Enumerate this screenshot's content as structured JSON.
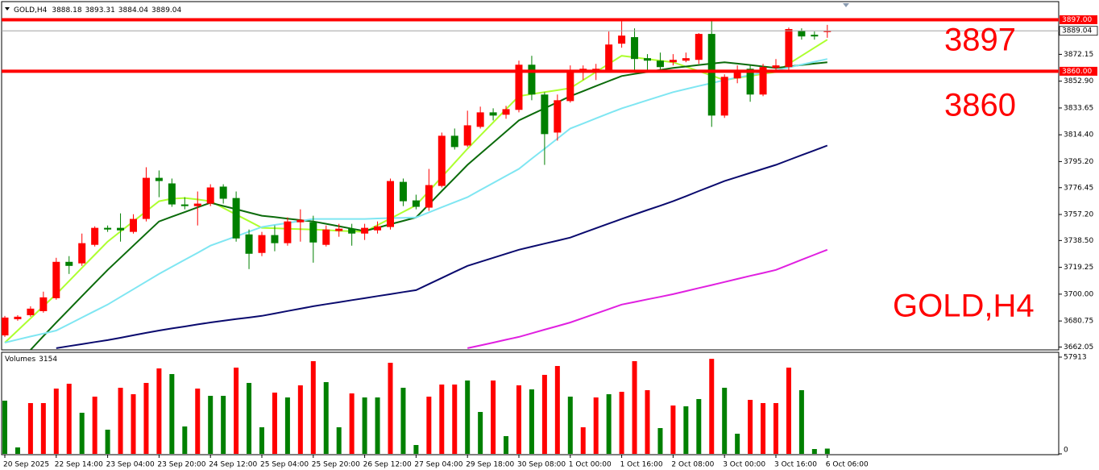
{
  "chart_data": {
    "type": "candlestick",
    "title": "GOLD,H4",
    "categories": [
      "20 Sep 2025",
      null,
      null,
      null,
      "22 Sep 14:00",
      null,
      null,
      null,
      "23 Sep 04:00",
      null,
      null,
      null,
      "23 Sep 20:00",
      null,
      null,
      null,
      "24 Sep 12:00",
      null,
      null,
      null,
      "25 Sep 04:00",
      null,
      null,
      null,
      "25 Sep 20:00",
      null,
      null,
      null,
      "26 Sep 12:00",
      null,
      null,
      null,
      "27 Sep 04:00",
      null,
      null,
      null,
      "29 Sep 18:00",
      null,
      null,
      null,
      "30 Sep 08:00",
      null,
      null,
      null,
      "1 Oct 00:00",
      null,
      null,
      null,
      "1 Oct 16:00",
      null,
      null,
      null,
      "2 Oct 08:00",
      null,
      null,
      null,
      "3 Oct 00:00",
      null,
      null,
      null,
      "3 Oct 16:00",
      null,
      null,
      null,
      "6 Oct 06:00"
    ],
    "open": [
      3670.4,
      3682.0,
      3684.9,
      3687.8,
      3697.1,
      3723.2,
      3722.1,
      3735.4,
      3747.6,
      3747.6,
      3744.7,
      3754.0,
      3783.5,
      3779.5,
      3764.4,
      3763.2,
      3765.0,
      3777.2,
      3769.0,
      3742.9,
      3729.6,
      3742.4,
      3736.6,
      3751.6,
      3751.6,
      3735.4,
      3745.3,
      3747.0,
      3743.5,
      3745.8,
      3748.2,
      3780.6,
      3767.3,
      3762.1,
      3777.7,
      3813.7,
      3806.7,
      3820.1,
      3830.5,
      3828.8,
      3832.3,
      3864.7,
      3843.3,
      3816.0,
      3838.6,
      3859.5,
      3860.1,
      3860.7,
      3879.8,
      3884.5,
      3869.4,
      3867.6,
      3866.5,
      3867.6,
      3868.2,
      3886.8,
      3828.2,
      3854.9,
      3861.8,
      3843.3,
      3862.4,
      3863.0,
      3889.1,
      3886.2,
      3888.18
    ],
    "high": [
      3684.4,
      3684.9,
      3691.3,
      3701.8,
      3726.1,
      3727.3,
      3743.5,
      3748.7,
      3749.3,
      3758.0,
      3757.4,
      3791.1,
      3788.8,
      3783.0,
      3769.6,
      3773.7,
      3778.9,
      3778.9,
      3773.7,
      3746.4,
      3744.7,
      3749.3,
      3755.1,
      3760.9,
      3756.3,
      3749.3,
      3750.5,
      3750.5,
      3750.5,
      3752.2,
      3783.0,
      3783.0,
      3771.4,
      3789.9,
      3816.0,
      3818.9,
      3831.7,
      3834.6,
      3833.4,
      3835.2,
      3867.6,
      3871.1,
      3845.0,
      3843.3,
      3864.2,
      3864.2,
      3865.3,
      3888.5,
      3896.1,
      3890.8,
      3872.3,
      3873.4,
      3872.3,
      3873.4,
      3887.4,
      3896.1,
      3857.8,
      3864.2,
      3864.2,
      3865.3,
      3868.8,
      3891.4,
      3890.8,
      3888.5,
      3893.31
    ],
    "low": [
      3669.3,
      3680.9,
      3683.8,
      3686.7,
      3696.0,
      3714.5,
      3720.3,
      3734.2,
      3744.7,
      3737.7,
      3743.5,
      3752.2,
      3769.6,
      3762.7,
      3760.9,
      3749.3,
      3763.2,
      3765.0,
      3737.7,
      3718.0,
      3727.3,
      3730.8,
      3734.8,
      3737.7,
      3722.6,
      3734.2,
      3741.2,
      3734.8,
      3738.9,
      3743.5,
      3746.4,
      3763.2,
      3760.9,
      3759.8,
      3776.6,
      3803.8,
      3805.6,
      3818.9,
      3824.7,
      3825.9,
      3830.5,
      3839.2,
      3792.8,
      3810.2,
      3837.5,
      3853.7,
      3853.7,
      3859.5,
      3876.9,
      3859.5,
      3859.5,
      3859.5,
      3864.2,
      3866.5,
      3865.3,
      3820.1,
      3826.5,
      3851.4,
      3838.1,
      3842.1,
      3860.7,
      3860.7,
      3882.7,
      3882.7,
      3884.04
    ],
    "close": [
      3683.2,
      3683.8,
      3689.6,
      3697.7,
      3723.2,
      3720.3,
      3736.6,
      3747.6,
      3746.4,
      3745.8,
      3754.0,
      3783.5,
      3781.2,
      3764.4,
      3763.2,
      3765.0,
      3776.6,
      3768.5,
      3740.0,
      3729.0,
      3742.4,
      3736.6,
      3752.2,
      3753.4,
      3737.1,
      3746.4,
      3747.0,
      3743.5,
      3747.6,
      3748.7,
      3781.2,
      3766.7,
      3762.7,
      3778.3,
      3813.7,
      3805.6,
      3821.2,
      3830.5,
      3828.2,
      3832.8,
      3864.7,
      3843.3,
      3814.9,
      3839.2,
      3860.1,
      3861.8,
      3861.8,
      3879.2,
      3885.6,
      3868.8,
      3867.6,
      3863.0,
      3868.2,
      3869.4,
      3886.8,
      3828.2,
      3856.0,
      3860.7,
      3843.3,
      3863.0,
      3864.2,
      3890.3,
      3885.0,
      3885.0,
      3889.04
    ],
    "up_color": "#ff0000",
    "down_color": "#008000",
    "ylim": [
      3660,
      3910
    ],
    "yticks": [
      {
        "value": 3872.15,
        "label": "3872.15"
      },
      {
        "value": 3852.9,
        "label": "3852.90"
      },
      {
        "value": 3833.65,
        "label": "3833.65"
      },
      {
        "value": 3814.4,
        "label": "3814.40"
      },
      {
        "value": 3795.2,
        "label": "3795.20"
      },
      {
        "value": 3776.45,
        "label": "3776.45"
      },
      {
        "value": 3757.2,
        "label": "3757.20"
      },
      {
        "value": 3738.5,
        "label": "3738.50"
      },
      {
        "value": 3719.25,
        "label": "3719.25"
      },
      {
        "value": 3700,
        "label": "3700.00"
      },
      {
        "value": 3680.75,
        "label": "3680.75"
      },
      {
        "value": 3662.05,
        "label": "3662.05"
      }
    ],
    "levels": [
      {
        "value": 3897,
        "label": "3897.00",
        "color": "#ff0000"
      },
      {
        "value": 3860,
        "label": "3860.00",
        "color": "#ff0000"
      }
    ],
    "moving_averages": [
      {
        "color": "#adff2f",
        "values": [
          3665.2,
          3673.9,
          3682.6,
          3691.3,
          3700.0,
          3709.4,
          3718.9,
          3728.3,
          3737.7,
          3745.0,
          3752.2,
          3759.5,
          3766.7,
          3768.5,
          3769.0,
          3768.0,
          3766.7,
          3761.9,
          3757.1,
          3752.4,
          3747.6,
          3747.3,
          3747.0,
          3746.7,
          3746.4,
          3746.0,
          3745.5,
          3745.1,
          3744.7,
          3749.5,
          3754.2,
          3759.0,
          3763.8,
          3774.0,
          3784.1,
          3794.3,
          3804.4,
          3813.8,
          3823.3,
          3832.7,
          3842.1,
          3843.6,
          3845.0,
          3846.4,
          3847.9,
          3853.7,
          3859.5,
          3865.3,
          3871.1,
          3870.0,
          3868.8,
          3867.6,
          3866.5,
          3863.3,
          3860.1,
          3856.9,
          3853.7,
          3855.2,
          3856.6,
          3858.1,
          3859.5,
          3865.3,
          3871.1,
          3876.9,
          3882.7
        ]
      },
      {
        "color": "#0b6b0b",
        "values": [
          null,
          null,
          3660.0,
          3669.9,
          3679.7,
          3689.1,
          3698.6,
          3708.0,
          3717.4,
          3726.1,
          3734.8,
          3743.5,
          3752.2,
          3755.6,
          3758.9,
          3762.3,
          3765.6,
          3763.3,
          3761.0,
          3758.6,
          3756.3,
          3755.3,
          3754.2,
          3753.2,
          3752.2,
          3750.5,
          3748.8,
          3747.0,
          3745.3,
          3747.7,
          3750.2,
          3752.6,
          3755.1,
          3764.5,
          3774.0,
          3783.4,
          3792.8,
          3800.8,
          3808.7,
          3816.7,
          3824.7,
          3829.1,
          3833.4,
          3837.8,
          3842.1,
          3845.7,
          3849.4,
          3853.0,
          3856.6,
          3858.1,
          3859.5,
          3861.0,
          3862.4,
          3863.4,
          3864.5,
          3865.5,
          3866.5,
          3865.5,
          3864.5,
          3863.4,
          3862.4,
          3863.4,
          3864.5,
          3865.5,
          3866.5
        ]
      },
      {
        "color": "#7fe6f2",
        "values": [
          3665.2,
          3667.4,
          3669.6,
          3671.7,
          3673.9,
          3678.5,
          3683.2,
          3687.9,
          3692.5,
          3698.0,
          3703.5,
          3709.0,
          3714.5,
          3719.6,
          3724.7,
          3729.7,
          3734.8,
          3738.2,
          3741.5,
          3744.9,
          3748.2,
          3749.7,
          3751.1,
          3752.6,
          3754.0,
          3754.0,
          3754.0,
          3754.0,
          3754.0,
          3754.3,
          3754.6,
          3754.8,
          3755.1,
          3758.7,
          3762.4,
          3766.0,
          3769.6,
          3774.7,
          3779.8,
          3784.8,
          3789.9,
          3797.2,
          3804.4,
          3811.7,
          3818.9,
          3822.5,
          3826.2,
          3829.8,
          3833.4,
          3836.3,
          3839.2,
          3842.1,
          3845.0,
          3847.2,
          3849.4,
          3851.5,
          3853.7,
          3855.5,
          3857.2,
          3859.0,
          3860.7,
          3862.7,
          3864.8,
          3866.8,
          3868.8
        ]
      },
      {
        "color": "#0a0a6e",
        "values": [
          null,
          null,
          null,
          null,
          3661.2,
          3662.7,
          3664.1,
          3665.6,
          3667.0,
          3668.7,
          3670.5,
          3672.2,
          3673.9,
          3675.4,
          3676.8,
          3678.3,
          3679.7,
          3680.9,
          3682.1,
          3683.2,
          3684.4,
          3686.1,
          3687.9,
          3689.6,
          3691.3,
          3692.8,
          3694.2,
          3695.7,
          3697.1,
          3698.6,
          3700.0,
          3701.5,
          3702.9,
          3707.3,
          3711.6,
          3716.0,
          3720.3,
          3723.2,
          3726.1,
          3729.0,
          3731.9,
          3734.1,
          3736.3,
          3738.4,
          3740.6,
          3744.0,
          3747.3,
          3750.7,
          3754.0,
          3757.2,
          3760.4,
          3763.5,
          3766.7,
          3770.3,
          3774.0,
          3777.6,
          3781.2,
          3784.1,
          3787.0,
          3789.9,
          3792.8,
          3796.3,
          3799.8,
          3803.2,
          3806.7
        ]
      },
      {
        "color": "#e020e0",
        "values": [
          null,
          null,
          null,
          null,
          null,
          null,
          null,
          null,
          null,
          null,
          null,
          null,
          null,
          null,
          null,
          null,
          null,
          null,
          null,
          null,
          null,
          null,
          null,
          null,
          null,
          null,
          null,
          null,
          null,
          null,
          null,
          null,
          null,
          null,
          null,
          null,
          3661.2,
          3663.2,
          3665.2,
          3667.3,
          3669.3,
          3671.9,
          3674.5,
          3677.1,
          3679.7,
          3682.9,
          3686.1,
          3689.3,
          3692.5,
          3694.4,
          3696.3,
          3698.1,
          3700.0,
          3702.2,
          3704.4,
          3706.5,
          3708.7,
          3710.9,
          3713.1,
          3715.2,
          3717.4,
          3721.0,
          3724.7,
          3728.3,
          3731.9
        ]
      }
    ],
    "volume": {
      "name": "Volumes",
      "values": [
        31852,
        3861,
        30404,
        30404,
        39091,
        41986,
        24613,
        34265,
        14478,
        39573,
        35712,
        42469,
        51156,
        47777,
        16408,
        39091,
        34747,
        34747,
        51638,
        42469,
        15926,
        36678,
        33782,
        41021,
        55499,
        42951,
        15926,
        36195,
        33782,
        33782,
        54534,
        39573,
        5309,
        34265,
        41504,
        41504,
        43917,
        25095,
        43917,
        10617,
        41021,
        38608,
        47295,
        52603,
        34265,
        15926,
        33782,
        35712,
        37160,
        55499,
        38125,
        15443,
        28956,
        28473,
        32817,
        56879,
        39573,
        12065,
        32334,
        30404,
        30404,
        51638,
        38125,
        2896,
        3154
      ],
      "colors": [
        "#008000",
        "#008000",
        "#ff0000",
        "#ff0000",
        "#ff0000",
        "#ff0000",
        "#008000",
        "#ff0000",
        "#008000",
        "#ff0000",
        "#ff0000",
        "#ff0000",
        "#ff0000",
        "#008000",
        "#008000",
        "#ff0000",
        "#008000",
        "#008000",
        "#ff0000",
        "#008000",
        "#008000",
        "#ff0000",
        "#008000",
        "#ff0000",
        "#ff0000",
        "#008000",
        "#008000",
        "#ff0000",
        "#008000",
        "#008000",
        "#ff0000",
        "#008000",
        "#008000",
        "#ff0000",
        "#ff0000",
        "#ff0000",
        "#008000",
        "#008000",
        "#ff0000",
        "#008000",
        "#ff0000",
        "#008000",
        "#ff0000",
        "#ff0000",
        "#008000",
        "#ff0000",
        "#ff0000",
        "#008000",
        "#ff0000",
        "#ff0000",
        "#ff0000",
        "#008000",
        "#ff0000",
        "#008000",
        "#008000",
        "#ff0000",
        "#008000",
        "#008000",
        "#ff0000",
        "#ff0000",
        "#ff0000",
        "#ff0000",
        "#008000",
        "#008000",
        "#008000"
      ],
      "ylim": [
        0,
        60800
      ],
      "yticks": [
        0,
        57913
      ]
    }
  }
}
